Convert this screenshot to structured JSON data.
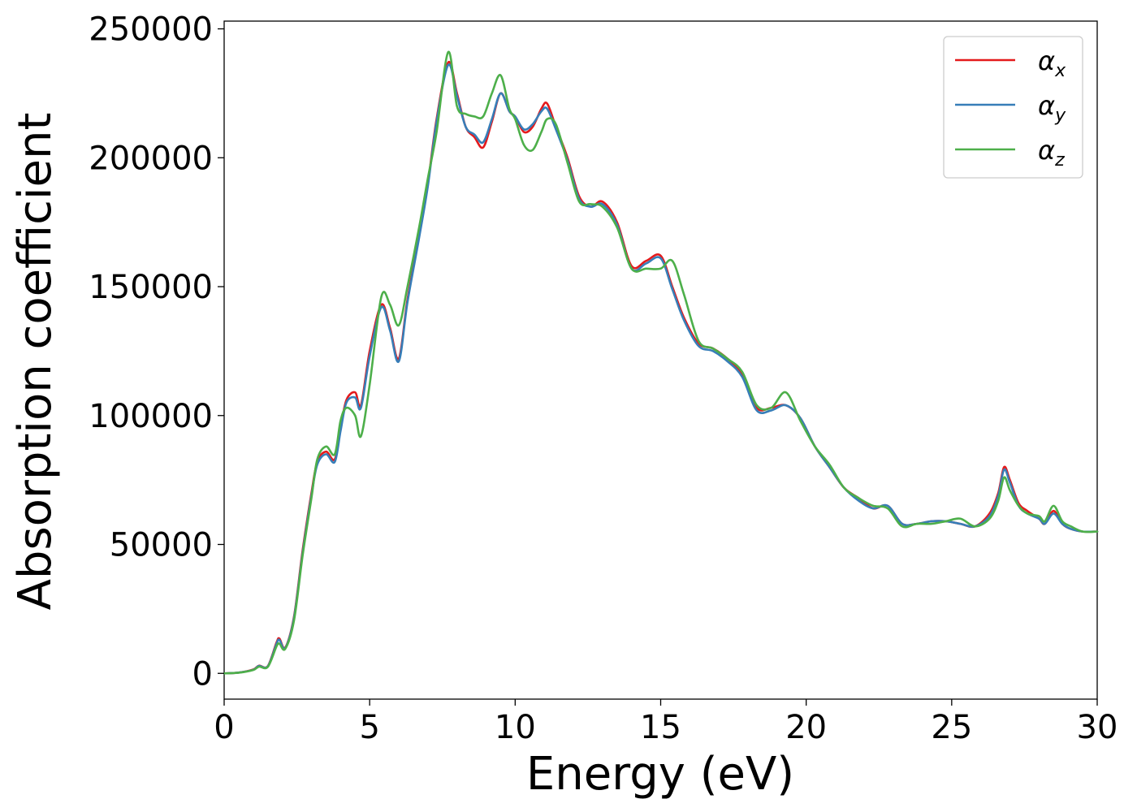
{
  "chart_data": {
    "type": "line",
    "title": "",
    "xlabel": "Energy (eV)",
    "ylabel": "Absorption coefficient",
    "xlim": [
      0,
      30
    ],
    "ylim": [
      -10000,
      253000
    ],
    "xticks": [
      0,
      5,
      10,
      15,
      20,
      25,
      30
    ],
    "xtick_labels": [
      "0",
      "5",
      "10",
      "15",
      "20",
      "25",
      "30"
    ],
    "yticks": [
      0,
      50000,
      100000,
      150000,
      200000,
      250000
    ],
    "ytick_labels": [
      "0",
      "50000",
      "100000",
      "150000",
      "200000",
      "250000"
    ],
    "grid": false,
    "legend": "top-right",
    "series": [
      {
        "name": "α_x",
        "label_base": "α",
        "label_sub": "x",
        "color": "#e41a1c",
        "x": [
          0,
          0.5,
          1,
          1.2,
          1.5,
          1.8,
          1.9,
          2.1,
          2.4,
          2.7,
          3.0,
          3.2,
          3.5,
          3.8,
          4.0,
          4.2,
          4.5,
          4.7,
          5.0,
          5.4,
          5.7,
          6.0,
          6.3,
          6.7,
          7.0,
          7.3,
          7.7,
          8.0,
          8.3,
          8.6,
          8.9,
          9.2,
          9.5,
          9.8,
          10.0,
          10.3,
          10.6,
          10.9,
          11.1,
          11.4,
          11.8,
          12.2,
          12.6,
          13.0,
          13.5,
          14.0,
          14.5,
          15.0,
          15.4,
          15.8,
          16.3,
          16.8,
          17.3,
          17.8,
          18.3,
          18.8,
          19.3,
          19.8,
          20.3,
          20.8,
          21.3,
          21.8,
          22.3,
          22.8,
          23.3,
          23.8,
          24.3,
          24.8,
          25.3,
          25.8,
          26.3,
          26.6,
          26.8,
          27.0,
          27.3,
          27.6,
          28.0,
          28.2,
          28.5,
          28.8,
          29.1,
          29.5,
          30.0
        ],
        "y": [
          0,
          300,
          1500,
          3000,
          2800,
          12000,
          13500,
          10000,
          22000,
          48000,
          70000,
          82000,
          86000,
          83000,
          95000,
          106000,
          109000,
          104000,
          125000,
          143000,
          134000,
          122000,
          145000,
          170000,
          190000,
          215000,
          237000,
          225000,
          212000,
          208000,
          204000,
          214000,
          225000,
          218000,
          216000,
          210000,
          212000,
          219000,
          221000,
          212000,
          200000,
          185000,
          181000,
          183000,
          175000,
          158000,
          160000,
          162000,
          150000,
          138000,
          128000,
          126000,
          122000,
          116000,
          103000,
          103000,
          104000,
          99000,
          88000,
          80000,
          72000,
          68000,
          64000,
          65000,
          58000,
          58000,
          59000,
          59000,
          58000,
          57000,
          62000,
          70000,
          80000,
          75000,
          66000,
          63000,
          60000,
          58000,
          63000,
          58000,
          56000,
          55000,
          55000
        ]
      },
      {
        "name": "α_y",
        "label_base": "α",
        "label_sub": "y",
        "color": "#377eb8",
        "x": [
          0,
          0.5,
          1,
          1.2,
          1.5,
          1.8,
          1.9,
          2.1,
          2.4,
          2.7,
          3.0,
          3.2,
          3.5,
          3.8,
          4.0,
          4.2,
          4.5,
          4.7,
          5.0,
          5.4,
          5.7,
          6.0,
          6.3,
          6.7,
          7.0,
          7.3,
          7.7,
          8.0,
          8.3,
          8.6,
          8.9,
          9.2,
          9.5,
          9.8,
          10.0,
          10.3,
          10.6,
          10.9,
          11.1,
          11.4,
          11.8,
          12.2,
          12.6,
          13.0,
          13.5,
          14.0,
          14.5,
          15.0,
          15.4,
          15.8,
          16.3,
          16.8,
          17.3,
          17.8,
          18.3,
          18.8,
          19.3,
          19.8,
          20.3,
          20.8,
          21.3,
          21.8,
          22.3,
          22.8,
          23.3,
          23.8,
          24.3,
          24.8,
          25.3,
          25.8,
          26.3,
          26.6,
          26.8,
          27.0,
          27.3,
          27.6,
          28.0,
          28.2,
          28.5,
          28.8,
          29.1,
          29.5,
          30.0
        ],
        "y": [
          0,
          300,
          1400,
          2900,
          2700,
          11500,
          13000,
          9800,
          21500,
          47000,
          69000,
          81000,
          85000,
          82000,
          94000,
          105000,
          107000,
          103000,
          123000,
          142000,
          133000,
          121000,
          144000,
          169000,
          189000,
          214000,
          236000,
          224000,
          212000,
          209000,
          206000,
          215000,
          225000,
          218000,
          216000,
          211000,
          213000,
          218000,
          219000,
          211000,
          199000,
          184000,
          181000,
          182000,
          174000,
          157000,
          159000,
          161000,
          149000,
          137000,
          127000,
          125000,
          121000,
          115000,
          102000,
          102000,
          104000,
          99000,
          88000,
          80000,
          72000,
          67000,
          64000,
          65000,
          58000,
          58000,
          59000,
          59000,
          58000,
          57000,
          61000,
          69000,
          79000,
          74000,
          65000,
          62000,
          60000,
          58000,
          62000,
          58000,
          56000,
          55000,
          55000
        ]
      },
      {
        "name": "α_z",
        "label_base": "α",
        "label_sub": "z",
        "color": "#4daf4a",
        "x": [
          0,
          0.5,
          1,
          1.2,
          1.5,
          1.8,
          1.9,
          2.1,
          2.4,
          2.7,
          3.0,
          3.2,
          3.5,
          3.8,
          4.0,
          4.2,
          4.5,
          4.7,
          5.0,
          5.4,
          5.7,
          6.0,
          6.3,
          6.7,
          7.0,
          7.3,
          7.7,
          8.0,
          8.3,
          8.6,
          8.9,
          9.2,
          9.5,
          9.8,
          10.0,
          10.3,
          10.6,
          10.9,
          11.1,
          11.4,
          11.8,
          12.2,
          12.6,
          13.0,
          13.5,
          14.0,
          14.5,
          15.0,
          15.4,
          15.8,
          16.3,
          16.8,
          17.3,
          17.8,
          18.3,
          18.8,
          19.3,
          19.8,
          20.3,
          20.8,
          21.3,
          21.8,
          22.3,
          22.8,
          23.3,
          23.8,
          24.3,
          24.8,
          25.3,
          25.8,
          26.3,
          26.6,
          26.8,
          27.0,
          27.3,
          27.6,
          28.0,
          28.2,
          28.5,
          28.8,
          29.1,
          29.5,
          30.0
        ],
        "y": [
          0,
          250,
          1300,
          2600,
          2500,
          10500,
          11500,
          9500,
          20500,
          46000,
          68000,
          83000,
          88000,
          85000,
          98000,
          103000,
          100000,
          92000,
          112000,
          146000,
          143000,
          135000,
          150000,
          173000,
          192000,
          210000,
          241000,
          220000,
          217000,
          216000,
          216000,
          225000,
          232000,
          219000,
          215000,
          205000,
          203000,
          210000,
          215000,
          213000,
          198000,
          183000,
          182000,
          181000,
          173000,
          157000,
          157000,
          157000,
          160000,
          147000,
          129000,
          126000,
          122000,
          117000,
          104000,
          103000,
          109000,
          98000,
          88000,
          81000,
          72000,
          68000,
          65000,
          64000,
          57000,
          58000,
          58000,
          59000,
          60000,
          57000,
          60000,
          67000,
          76000,
          71000,
          65000,
          62000,
          61000,
          59000,
          65000,
          59000,
          57000,
          55000,
          55000
        ]
      }
    ]
  }
}
